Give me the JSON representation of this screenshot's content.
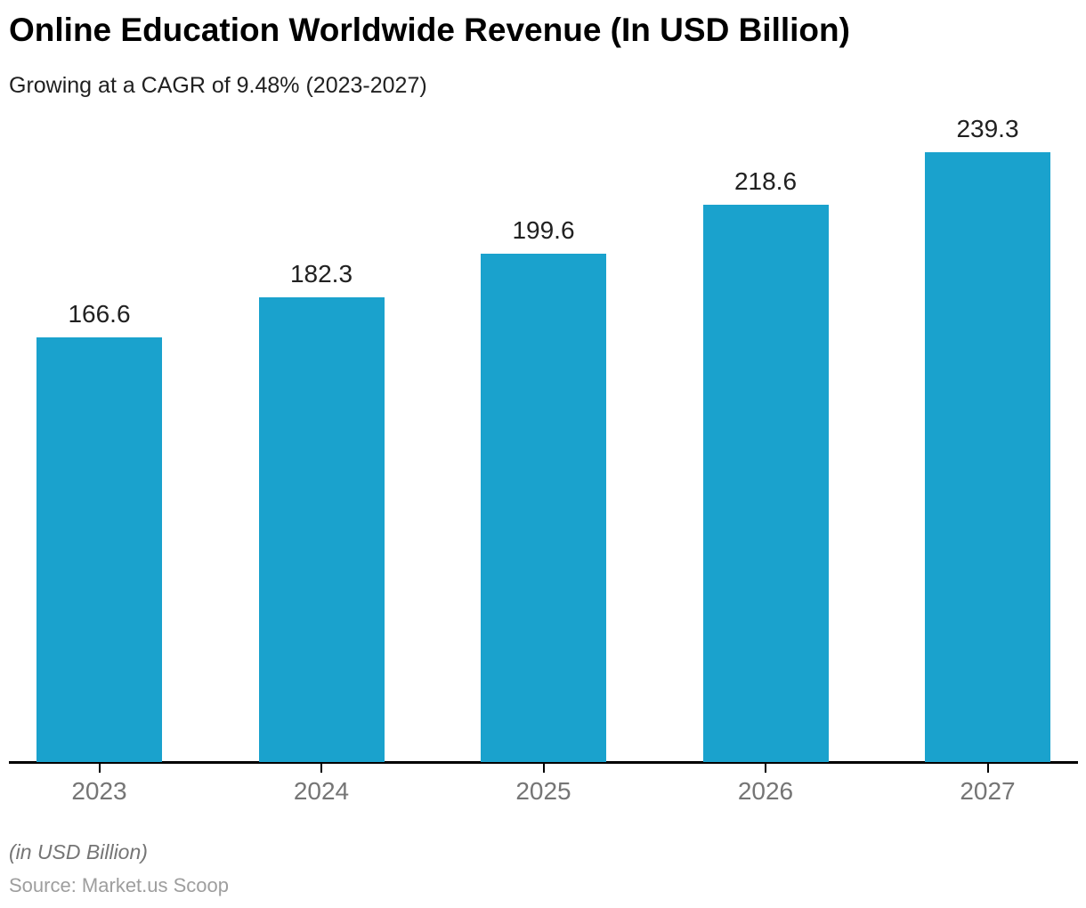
{
  "header": {
    "title": "Online Education Worldwide Revenue (In USD Billion)",
    "subtitle": "Growing at a CAGR of 9.48% (2023-2027)"
  },
  "footer": {
    "unit_note": "(in USD Billion)",
    "source": "Source: Market.us Scoop"
  },
  "chart_data": {
    "type": "bar",
    "title": "Online Education Worldwide Revenue (In USD Billion)",
    "subtitle": "Growing at a CAGR of 9.48% (2023-2027)",
    "categories": [
      "2023",
      "2024",
      "2025",
      "2026",
      "2027"
    ],
    "values": [
      166.6,
      182.3,
      199.6,
      218.6,
      239.3
    ],
    "value_labels": [
      "166.6",
      "182.3",
      "199.6",
      "218.6",
      "239.3"
    ],
    "xlabel": "",
    "ylabel": "",
    "ylim": [
      0,
      260
    ],
    "grid": false,
    "legend": "none",
    "unit_note": "(in USD Billion)",
    "source": "Source: Market.us Scoop",
    "colors": {
      "bar_fill": "#1aa2cd",
      "axis_line": "#000000",
      "tick_mark": "#000000",
      "value_label_text": "#212121",
      "tick_label_text": "#757575",
      "title_text": "#000000",
      "subtitle_text": "#212121",
      "unit_note_text": "#757575",
      "source_text": "#9e9e9e",
      "background": "#ffffff"
    }
  }
}
